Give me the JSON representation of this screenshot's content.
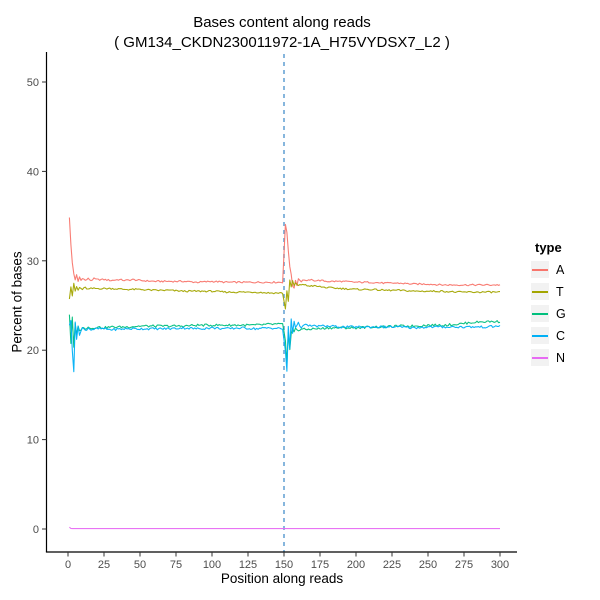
{
  "chart_data": {
    "type": "line",
    "title": "Bases content along reads",
    "subtitle": "( GM134_CKDN230011972-1A_H75VYDSX7_L2 )",
    "xlabel": "Position along reads",
    "ylabel": "Percent of bases",
    "xlim": [
      0,
      300
    ],
    "ylim": [
      0,
      50
    ],
    "x_ticks": [
      0,
      25,
      50,
      75,
      100,
      125,
      150,
      175,
      200,
      225,
      250,
      275,
      300
    ],
    "y_ticks": [
      0,
      10,
      20,
      30,
      40,
      50
    ],
    "grid": false,
    "background": "#ffffff",
    "axis_line_color": "#000000",
    "tick_label_color": "#4d4d4d",
    "vline": {
      "x": 150,
      "style": "dashed",
      "color": "#4f94cd"
    },
    "legend_title": "type",
    "legend_position": "right",
    "series": [
      {
        "name": "A",
        "color": "#F8766D",
        "jitter": 0.09,
        "points": [
          [
            1,
            34.8
          ],
          [
            2,
            31.8
          ],
          [
            3,
            29.8
          ],
          [
            4,
            28.6
          ],
          [
            5,
            27.8
          ],
          [
            6,
            28.4
          ],
          [
            7,
            27.7
          ],
          [
            8,
            28.2
          ],
          [
            9,
            27.8
          ],
          [
            10,
            28.1
          ],
          [
            12,
            27.8
          ],
          [
            14,
            28.0
          ],
          [
            16,
            27.8
          ],
          [
            18,
            28.0
          ],
          [
            20,
            27.9
          ],
          [
            25,
            27.9
          ],
          [
            30,
            27.8
          ],
          [
            35,
            27.9
          ],
          [
            40,
            27.8
          ],
          [
            45,
            27.9
          ],
          [
            50,
            27.8
          ],
          [
            60,
            27.7
          ],
          [
            70,
            27.7
          ],
          [
            80,
            27.7
          ],
          [
            90,
            27.6
          ],
          [
            100,
            27.7
          ],
          [
            110,
            27.6
          ],
          [
            120,
            27.6
          ],
          [
            130,
            27.6
          ],
          [
            140,
            27.6
          ],
          [
            149,
            27.6
          ],
          [
            151,
            34.0
          ],
          [
            152,
            33.2
          ],
          [
            153,
            31.2
          ],
          [
            154,
            29.4
          ],
          [
            155,
            28.4
          ],
          [
            156,
            27.2
          ],
          [
            157,
            27.0
          ],
          [
            158,
            27.8
          ],
          [
            159,
            27.3
          ],
          [
            160,
            28.0
          ],
          [
            162,
            27.7
          ],
          [
            164,
            27.9
          ],
          [
            166,
            27.7
          ],
          [
            168,
            27.9
          ],
          [
            170,
            27.8
          ],
          [
            175,
            27.8
          ],
          [
            180,
            27.7
          ],
          [
            190,
            27.7
          ],
          [
            200,
            27.6
          ],
          [
            210,
            27.6
          ],
          [
            220,
            27.5
          ],
          [
            230,
            27.5
          ],
          [
            240,
            27.4
          ],
          [
            250,
            27.4
          ],
          [
            260,
            27.3
          ],
          [
            270,
            27.3
          ],
          [
            280,
            27.3
          ],
          [
            290,
            27.3
          ],
          [
            300,
            27.3
          ]
        ]
      },
      {
        "name": "T",
        "color": "#A3A500",
        "jitter": 0.09,
        "points": [
          [
            1,
            25.8
          ],
          [
            2,
            27.1
          ],
          [
            3,
            26.1
          ],
          [
            4,
            27.4
          ],
          [
            5,
            26.6
          ],
          [
            6,
            27.1
          ],
          [
            7,
            26.7
          ],
          [
            8,
            27.0
          ],
          [
            10,
            26.8
          ],
          [
            12,
            27.0
          ],
          [
            14,
            26.8
          ],
          [
            16,
            26.9
          ],
          [
            20,
            26.9
          ],
          [
            25,
            26.9
          ],
          [
            30,
            26.9
          ],
          [
            40,
            26.8
          ],
          [
            50,
            26.8
          ],
          [
            60,
            26.7
          ],
          [
            70,
            26.7
          ],
          [
            80,
            26.6
          ],
          [
            90,
            26.6
          ],
          [
            100,
            26.6
          ],
          [
            110,
            26.5
          ],
          [
            120,
            26.5
          ],
          [
            130,
            26.5
          ],
          [
            140,
            26.4
          ],
          [
            149,
            26.4
          ],
          [
            151,
            24.6
          ],
          [
            152,
            26.7
          ],
          [
            153,
            25.5
          ],
          [
            154,
            27.8
          ],
          [
            155,
            27.0
          ],
          [
            156,
            27.8
          ],
          [
            157,
            27.2
          ],
          [
            158,
            27.5
          ],
          [
            160,
            27.2
          ],
          [
            163,
            27.4
          ],
          [
            166,
            27.2
          ],
          [
            170,
            27.2
          ],
          [
            175,
            27.1
          ],
          [
            180,
            27.0
          ],
          [
            190,
            26.9
          ],
          [
            200,
            26.8
          ],
          [
            210,
            26.8
          ],
          [
            220,
            26.7
          ],
          [
            230,
            26.7
          ],
          [
            240,
            26.6
          ],
          [
            250,
            26.6
          ],
          [
            260,
            26.6
          ],
          [
            270,
            26.5
          ],
          [
            280,
            26.5
          ],
          [
            290,
            26.5
          ],
          [
            300,
            26.5
          ]
        ]
      },
      {
        "name": "G",
        "color": "#00BF7D",
        "jitter": 0.13,
        "points": [
          [
            1,
            24.0
          ],
          [
            2,
            20.8
          ],
          [
            3,
            23.6
          ],
          [
            4,
            20.3
          ],
          [
            5,
            22.9
          ],
          [
            6,
            21.7
          ],
          [
            7,
            22.8
          ],
          [
            8,
            22.1
          ],
          [
            10,
            22.6
          ],
          [
            12,
            22.3
          ],
          [
            14,
            22.7
          ],
          [
            16,
            22.4
          ],
          [
            20,
            22.6
          ],
          [
            25,
            22.5
          ],
          [
            30,
            22.6
          ],
          [
            40,
            22.6
          ],
          [
            50,
            22.7
          ],
          [
            60,
            22.7
          ],
          [
            70,
            22.7
          ],
          [
            80,
            22.7
          ],
          [
            90,
            22.8
          ],
          [
            100,
            22.8
          ],
          [
            110,
            22.8
          ],
          [
            120,
            22.8
          ],
          [
            130,
            22.8
          ],
          [
            140,
            22.9
          ],
          [
            149,
            22.9
          ],
          [
            151,
            21.0
          ],
          [
            152,
            18.6
          ],
          [
            153,
            22.1
          ],
          [
            154,
            20.1
          ],
          [
            155,
            21.8
          ],
          [
            156,
            22.5
          ],
          [
            157,
            22.0
          ],
          [
            158,
            22.4
          ],
          [
            160,
            22.2
          ],
          [
            162,
            22.4
          ],
          [
            165,
            22.3
          ],
          [
            170,
            22.4
          ],
          [
            175,
            22.4
          ],
          [
            180,
            22.5
          ],
          [
            190,
            22.5
          ],
          [
            200,
            22.5
          ],
          [
            210,
            22.6
          ],
          [
            220,
            22.6
          ],
          [
            230,
            22.7
          ],
          [
            240,
            22.7
          ],
          [
            250,
            22.8
          ],
          [
            260,
            22.8
          ],
          [
            270,
            22.9
          ],
          [
            280,
            23.1
          ],
          [
            290,
            23.2
          ],
          [
            300,
            23.2
          ]
        ]
      },
      {
        "name": "C",
        "color": "#00B0F6",
        "jitter": 0.13,
        "points": [
          [
            1,
            22.7
          ],
          [
            2,
            23.3
          ],
          [
            3,
            20.1
          ],
          [
            4,
            17.7
          ],
          [
            5,
            23.2
          ],
          [
            6,
            21.1
          ],
          [
            7,
            22.7
          ],
          [
            8,
            21.8
          ],
          [
            10,
            22.5
          ],
          [
            12,
            22.2
          ],
          [
            14,
            22.5
          ],
          [
            16,
            22.3
          ],
          [
            20,
            22.4
          ],
          [
            25,
            22.4
          ],
          [
            30,
            22.3
          ],
          [
            40,
            22.4
          ],
          [
            50,
            22.4
          ],
          [
            60,
            22.4
          ],
          [
            70,
            22.4
          ],
          [
            80,
            22.5
          ],
          [
            90,
            22.4
          ],
          [
            100,
            22.5
          ],
          [
            110,
            22.4
          ],
          [
            120,
            22.5
          ],
          [
            130,
            22.4
          ],
          [
            140,
            22.5
          ],
          [
            149,
            22.4
          ],
          [
            151,
            19.8
          ],
          [
            152,
            17.7
          ],
          [
            153,
            22.6
          ],
          [
            154,
            20.2
          ],
          [
            155,
            23.5
          ],
          [
            156,
            21.9
          ],
          [
            157,
            23.3
          ],
          [
            158,
            22.6
          ],
          [
            160,
            23.0
          ],
          [
            162,
            22.6
          ],
          [
            165,
            22.8
          ],
          [
            170,
            22.7
          ],
          [
            175,
            22.7
          ],
          [
            180,
            22.7
          ],
          [
            190,
            22.6
          ],
          [
            200,
            22.6
          ],
          [
            210,
            22.6
          ],
          [
            220,
            22.6
          ],
          [
            230,
            22.6
          ],
          [
            240,
            22.5
          ],
          [
            250,
            22.6
          ],
          [
            260,
            22.6
          ],
          [
            270,
            22.6
          ],
          [
            280,
            22.6
          ],
          [
            290,
            22.6
          ],
          [
            300,
            22.7
          ]
        ]
      },
      {
        "name": "N",
        "color": "#E76BF3",
        "jitter": 0,
        "points": [
          [
            1,
            0.2
          ],
          [
            2,
            0.06
          ],
          [
            3,
            0.05
          ],
          [
            150,
            0.05
          ],
          [
            300,
            0.05
          ]
        ]
      }
    ]
  }
}
